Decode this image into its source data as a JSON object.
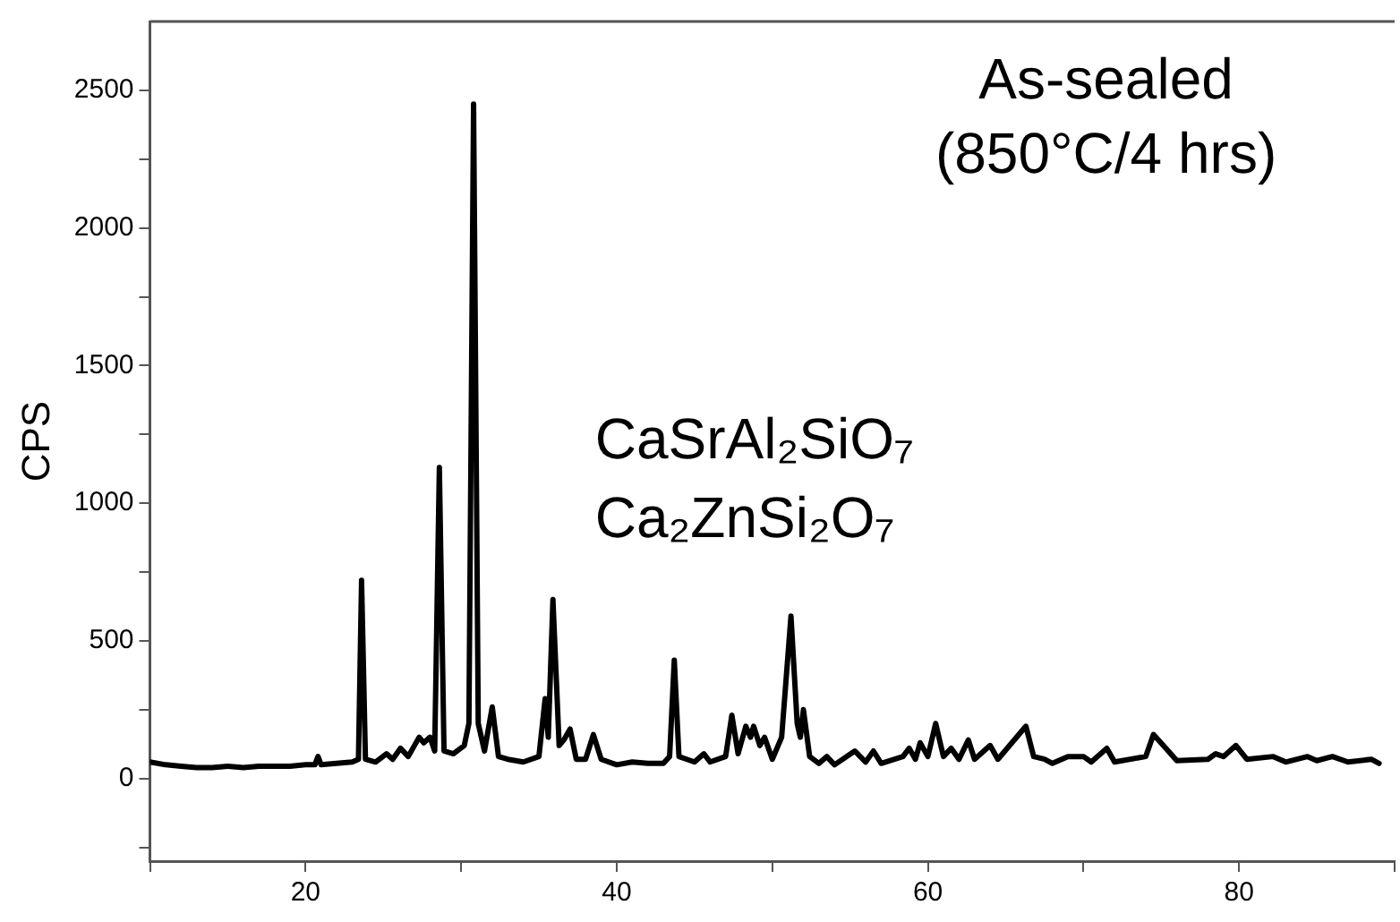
{
  "chart_data": {
    "type": "line",
    "ylabel": "CPS",
    "annotations": [
      "As-sealed",
      "(850°C/4 hrs)",
      "CaSrAl₂SiO₇",
      "Ca₂ZnSi₂O₇"
    ],
    "xlim": [
      10,
      90
    ],
    "xticks": [
      {
        "value": 10,
        "label": null
      },
      20,
      {
        "value": 30,
        "label": null
      },
      40,
      {
        "value": 50,
        "label": null
      },
      60,
      {
        "value": 70,
        "label": null
      },
      80,
      {
        "value": 90,
        "label": null
      }
    ],
    "ylim": [
      -300,
      2750
    ],
    "yticks": [
      {
        "value": -250,
        "label": null
      },
      0,
      {
        "value": 250,
        "label": null
      },
      500,
      {
        "value": 750,
        "label": null
      },
      1000,
      {
        "value": 1250,
        "label": null
      },
      1500,
      {
        "value": 1750,
        "label": null
      },
      2000,
      {
        "value": 2250,
        "label": null
      },
      2500
    ],
    "grid": false,
    "legend": false,
    "marker": "none",
    "line_style": "solid",
    "series": [
      {
        "color": "#000000",
        "x": [
          10,
          11,
          12,
          13,
          14,
          15,
          16,
          17,
          18,
          19,
          20,
          20.6,
          20.8,
          21,
          22,
          23,
          23.4,
          23.6,
          23.85,
          24.5,
          25.2,
          25.6,
          26.1,
          26.6,
          27.3,
          27.6,
          28,
          28.3,
          28.6,
          28.9,
          29.5,
          30.2,
          30.5,
          30.8,
          31.1,
          31.5,
          32,
          32.4,
          33,
          34,
          35,
          35.4,
          35.6,
          35.9,
          36.3,
          36.6,
          37,
          37.4,
          38,
          38.5,
          39,
          40,
          41,
          42,
          43,
          43.4,
          43.7,
          44,
          45,
          45.6,
          46,
          47,
          47.4,
          47.8,
          48.3,
          48.6,
          48.8,
          49.2,
          49.5,
          50,
          50.6,
          51.2,
          51.6,
          51.8,
          52,
          52.4,
          53,
          53.5,
          54,
          55.3,
          56,
          56.5,
          57,
          58.4,
          58.8,
          59.2,
          59.5,
          60,
          60.5,
          61,
          61.5,
          62,
          62.6,
          63,
          64,
          64.5,
          66.3,
          66.8,
          67.5,
          68,
          69,
          70,
          70.5,
          71.5,
          72,
          74,
          74.5,
          75.3,
          76,
          78,
          78.5,
          79,
          79.8,
          80.5,
          82.2,
          83,
          84.4,
          85,
          86,
          87,
          88.5,
          89
        ],
        "values": [
          60,
          50,
          45,
          40,
          40,
          45,
          40,
          45,
          45,
          45,
          50,
          50,
          80,
          50,
          55,
          60,
          70,
          720,
          70,
          60,
          90,
          70,
          110,
          80,
          150,
          130,
          150,
          100,
          1130,
          100,
          90,
          120,
          200,
          2450,
          200,
          100,
          260,
          80,
          70,
          60,
          80,
          290,
          150,
          650,
          120,
          140,
          180,
          70,
          70,
          160,
          70,
          50,
          60,
          55,
          55,
          80,
          430,
          80,
          60,
          90,
          60,
          80,
          230,
          90,
          190,
          150,
          190,
          120,
          150,
          70,
          150,
          590,
          200,
          150,
          250,
          80,
          55,
          80,
          50,
          100,
          60,
          100,
          55,
          80,
          110,
          70,
          130,
          80,
          200,
          80,
          110,
          70,
          140,
          70,
          120,
          70,
          190,
          80,
          70,
          55,
          80,
          80,
          60,
          110,
          60,
          80,
          160,
          110,
          65,
          70,
          90,
          80,
          120,
          70,
          80,
          60,
          80,
          65,
          80,
          60,
          70,
          55
        ]
      }
    ]
  }
}
